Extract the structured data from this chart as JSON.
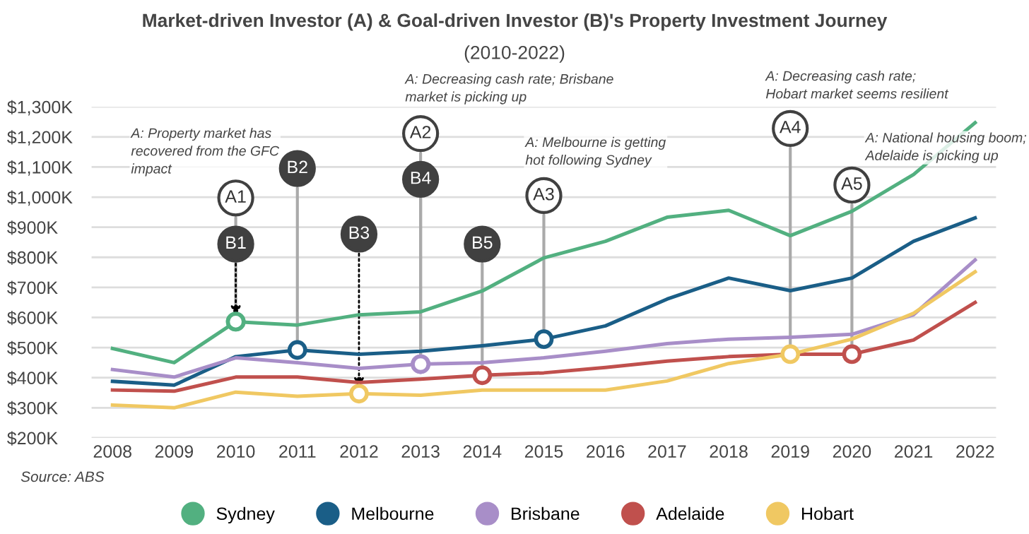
{
  "chart_data": {
    "type": "line",
    "title": "Market-driven Investor (A) & Goal-driven Investor (B)'s Property Investment Journey",
    "subtitle": "(2010-2022)",
    "x": [
      2008,
      2009,
      2010,
      2011,
      2012,
      2013,
      2014,
      2015,
      2016,
      2017,
      2018,
      2019,
      2020,
      2021,
      2022
    ],
    "series": [
      {
        "name": "Sydney",
        "color": "#52b080",
        "values": [
          497,
          450,
          586,
          575,
          609,
          619,
          688,
          798,
          853,
          933,
          956,
          872,
          953,
          1075,
          1247
        ]
      },
      {
        "name": "Melbourne",
        "color": "#1a5e87",
        "values": [
          388,
          375,
          470,
          492,
          478,
          488,
          506,
          528,
          572,
          661,
          731,
          689,
          731,
          853,
          931
        ]
      },
      {
        "name": "Brisbane",
        "color": "#a88ec8",
        "values": [
          427,
          402,
          466,
          450,
          431,
          445,
          450,
          466,
          488,
          513,
          528,
          534,
          544,
          609,
          791
        ]
      },
      {
        "name": "Adelaide",
        "color": "#c0504d",
        "values": [
          359,
          355,
          402,
          402,
          384,
          395,
          408,
          416,
          434,
          455,
          470,
          478,
          478,
          525,
          650
        ]
      },
      {
        "name": "Hobart",
        "color": "#f0c862",
        "values": [
          309,
          300,
          352,
          338,
          347,
          342,
          359,
          359,
          359,
          389,
          447,
          478,
          528,
          614,
          752
        ]
      }
    ],
    "xlim": [
      2007.66,
      2022.34
    ],
    "xticks": [
      2008,
      2009,
      2010,
      2011,
      2012,
      2013,
      2014,
      2015,
      2016,
      2017,
      2018,
      2019,
      2020,
      2021,
      2022
    ],
    "ylim": [
      200,
      1300
    ],
    "yticks": [
      {
        "value": 200,
        "label": "$200K"
      },
      {
        "value": 300,
        "label": "$300K"
      },
      {
        "value": 400,
        "label": "$400K"
      },
      {
        "value": 500,
        "label": "$500K"
      },
      {
        "value": 600,
        "label": "$600K"
      },
      {
        "value": 700,
        "label": "$700K"
      },
      {
        "value": 800,
        "label": "$800K"
      },
      {
        "value": 900,
        "label": "$900K"
      },
      {
        "value": 1000,
        "label": "$1,000K"
      },
      {
        "value": 1100,
        "label": "$1,100K"
      },
      {
        "value": 1200,
        "label": "$1,200K"
      },
      {
        "value": 1300,
        "label": "$1,300K"
      }
    ],
    "grid": "y",
    "legend": "bottom",
    "marker": "none",
    "line_style": "solid",
    "annotations": [
      {
        "text": "A1",
        "x": 2010,
        "y": 586
      },
      {
        "text": "B1",
        "x": 2010,
        "y": 586
      },
      {
        "text": "B2",
        "x": 2011,
        "y": 492
      },
      {
        "text": "B3",
        "x": 2012,
        "y": 347
      },
      {
        "text": "A2",
        "x": 2013,
        "y": 445
      },
      {
        "text": "B4",
        "x": 2013,
        "y": 445
      },
      {
        "text": "B5",
        "x": 2014,
        "y": 408
      },
      {
        "text": "A3",
        "x": 2015,
        "y": 528
      },
      {
        "text": "A4",
        "x": 2019,
        "y": 478
      },
      {
        "text": "A5",
        "x": 2020,
        "y": 478
      },
      "A: Property market has\nrecovered from the GFC\nimpact",
      "A: Decreasing cash rate; Brisbane\nmarket is picking up",
      "A: Melbourne is getting\nhot following Sydney",
      "A: Decreasing cash rate;\nHobart market seems resilient",
      "A: National housing boom;\nAdelaide is picking up",
      "Source: ABS"
    ]
  }
}
